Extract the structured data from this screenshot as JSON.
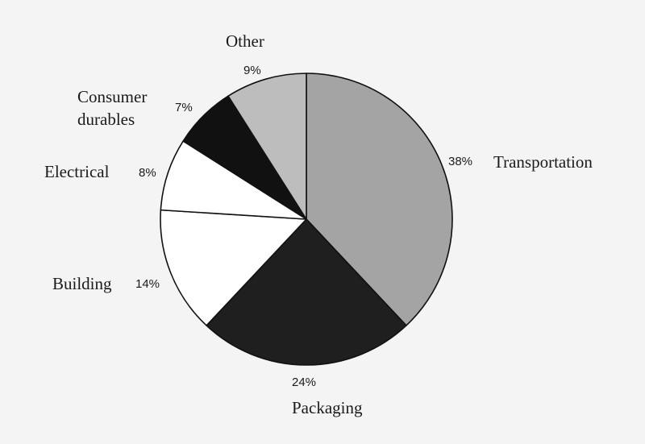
{
  "chart_data": {
    "type": "pie",
    "title": "",
    "start_angle_deg": 0,
    "direction": "clockwise",
    "slices": [
      {
        "label": "Transportation",
        "value": 38,
        "value_label": "38%",
        "color": "#a4a4a4"
      },
      {
        "label": "Packaging",
        "value": 24,
        "value_label": "24%",
        "color": "#1f1f1f"
      },
      {
        "label": "Building",
        "value": 14,
        "value_label": "14%",
        "color": "#ffffff"
      },
      {
        "label": "Electrical",
        "value": 8,
        "value_label": "8%",
        "color": "#ffffff"
      },
      {
        "label": "Consumer durables",
        "value": 7,
        "value_label": "7%",
        "color": "#111111"
      },
      {
        "label": "Other",
        "value": 9,
        "value_label": "9%",
        "color": "#bdbdbd"
      }
    ]
  }
}
